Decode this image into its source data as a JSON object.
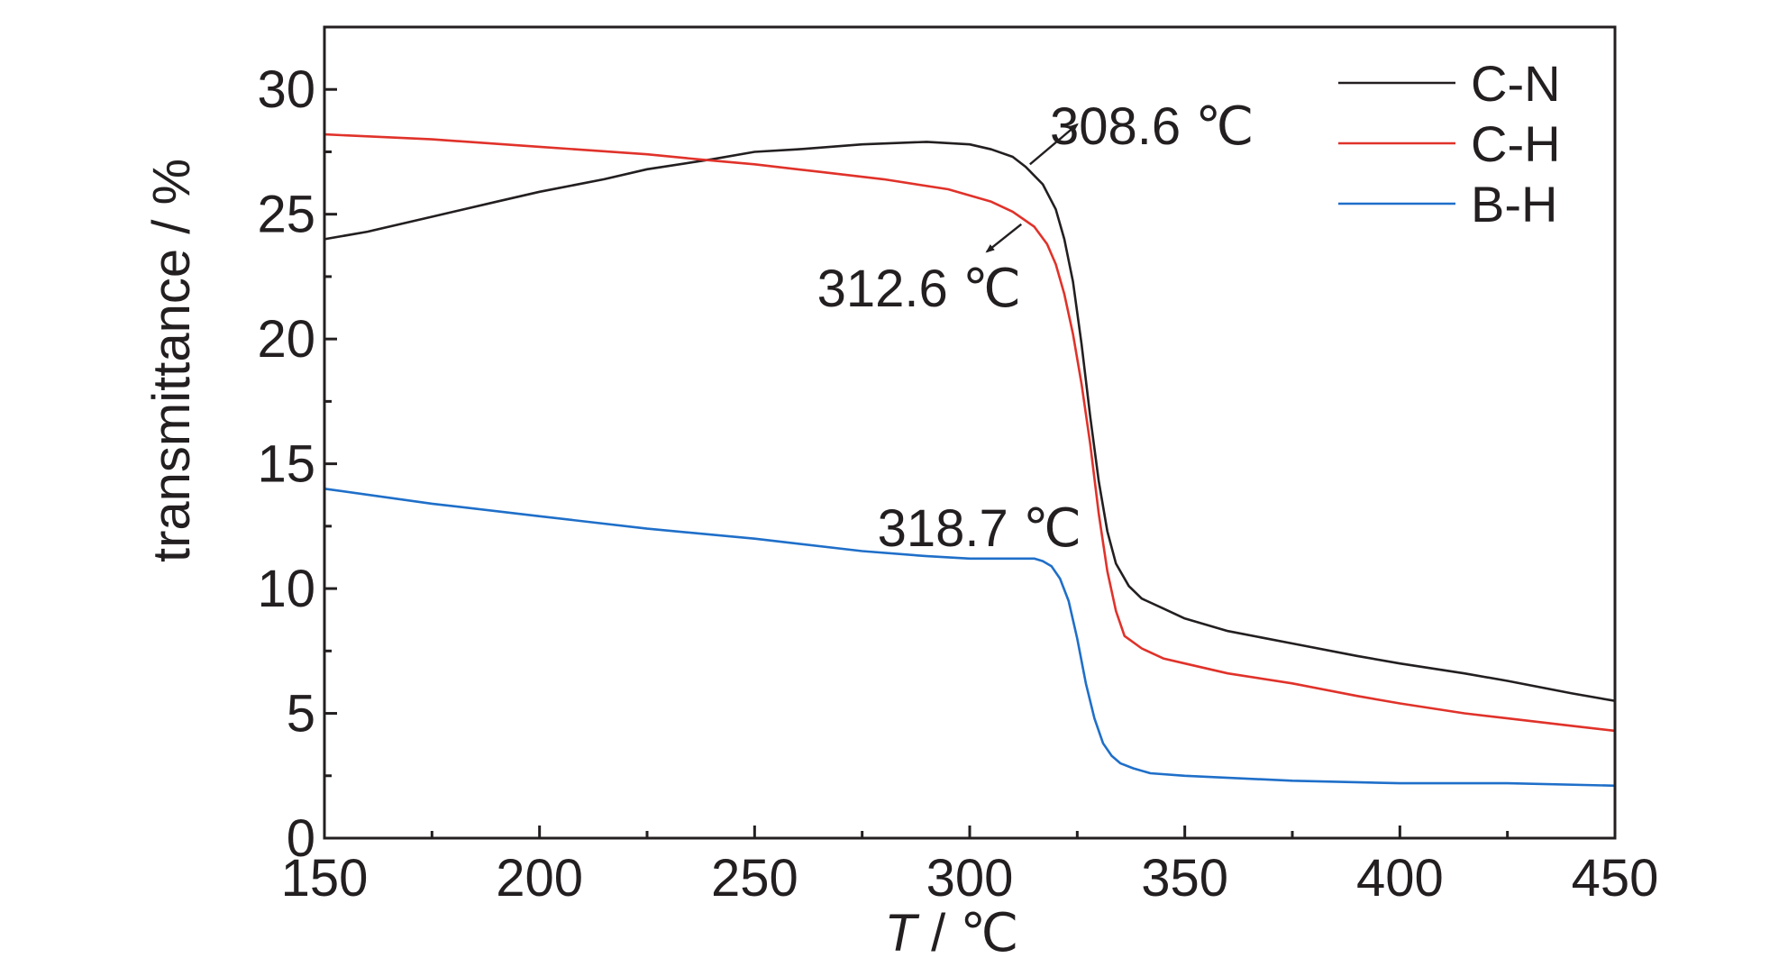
{
  "chart_data": {
    "type": "line",
    "xlabel_italic": "T",
    "xlabel_rest": " / ℃",
    "ylabel": "transmittance / %",
    "xlim": [
      150,
      450
    ],
    "ylim": [
      0,
      32.5
    ],
    "x_ticks": [
      150,
      200,
      250,
      300,
      350,
      400,
      450
    ],
    "y_ticks": [
      0,
      5,
      10,
      15,
      20,
      25,
      30
    ],
    "x_tick_labels": [
      "150",
      "200",
      "250",
      "300",
      "350",
      "400",
      "450"
    ],
    "y_tick_labels": [
      "0",
      "5",
      "10",
      "15",
      "20",
      "25",
      "30"
    ],
    "grid": false,
    "legend_position": "top-right",
    "series": [
      {
        "name": "C-N",
        "color": "#231f20",
        "x": [
          150,
          160,
          175,
          190,
          200,
          215,
          225,
          240,
          250,
          260,
          275,
          290,
          300,
          305,
          310,
          313,
          317,
          320,
          322,
          324,
          326,
          328,
          330,
          332,
          334,
          337,
          340,
          345,
          350,
          360,
          375,
          390,
          400,
          415,
          425,
          440,
          450
        ],
        "values": [
          24.0,
          24.3,
          24.9,
          25.5,
          25.9,
          26.4,
          26.8,
          27.2,
          27.5,
          27.6,
          27.8,
          27.9,
          27.8,
          27.6,
          27.3,
          26.9,
          26.2,
          25.2,
          24.0,
          22.3,
          19.8,
          16.9,
          14.3,
          12.3,
          11.0,
          10.1,
          9.6,
          9.2,
          8.8,
          8.3,
          7.8,
          7.3,
          7.0,
          6.6,
          6.3,
          5.8,
          5.5
        ]
      },
      {
        "name": "C-H",
        "color": "#e0322a",
        "x": [
          150,
          175,
          200,
          225,
          237,
          250,
          265,
          280,
          295,
          305,
          310,
          315,
          318,
          320,
          322,
          324,
          326,
          328,
          330,
          332,
          334,
          336,
          340,
          345,
          350,
          360,
          375,
          390,
          400,
          415,
          425,
          440,
          450
        ],
        "values": [
          28.2,
          28.0,
          27.7,
          27.4,
          27.2,
          27.0,
          26.7,
          26.4,
          26.0,
          25.5,
          25.1,
          24.5,
          23.8,
          23.0,
          21.8,
          20.2,
          18.2,
          15.8,
          13.0,
          10.7,
          9.1,
          8.1,
          7.6,
          7.2,
          7.0,
          6.6,
          6.2,
          5.7,
          5.4,
          5.0,
          4.8,
          4.5,
          4.3
        ]
      },
      {
        "name": "B-H",
        "color": "#1f6fc9",
        "x": [
          150,
          175,
          200,
          225,
          250,
          275,
          290,
          300,
          310,
          315,
          317,
          319,
          321,
          323,
          325,
          327,
          329,
          331,
          333,
          335,
          338,
          342,
          350,
          375,
          400,
          425,
          450
        ],
        "values": [
          14.0,
          13.4,
          12.9,
          12.4,
          12.0,
          11.5,
          11.3,
          11.2,
          11.2,
          11.2,
          11.1,
          10.9,
          10.4,
          9.5,
          8.0,
          6.2,
          4.8,
          3.8,
          3.3,
          3.0,
          2.8,
          2.6,
          2.5,
          2.3,
          2.2,
          2.2,
          2.1
        ]
      }
    ],
    "annotations": [
      {
        "text": "308.6 ℃",
        "series": "C-N",
        "x": 308.6,
        "y": 27.4,
        "arrow_from": [
          314,
          27.0
        ],
        "arrow_to": [
          325,
          28.6
        ]
      },
      {
        "text": "312.6 ℃",
        "series": "C-H",
        "x": 312.6,
        "y": 24.6,
        "arrow_from": [
          312,
          24.6
        ],
        "arrow_to": [
          304,
          23.5
        ]
      },
      {
        "text": "318.7 ℃",
        "series": "B-H",
        "x": 318.7,
        "y": 11.1,
        "arrow_from": null,
        "arrow_to": null
      }
    ]
  }
}
